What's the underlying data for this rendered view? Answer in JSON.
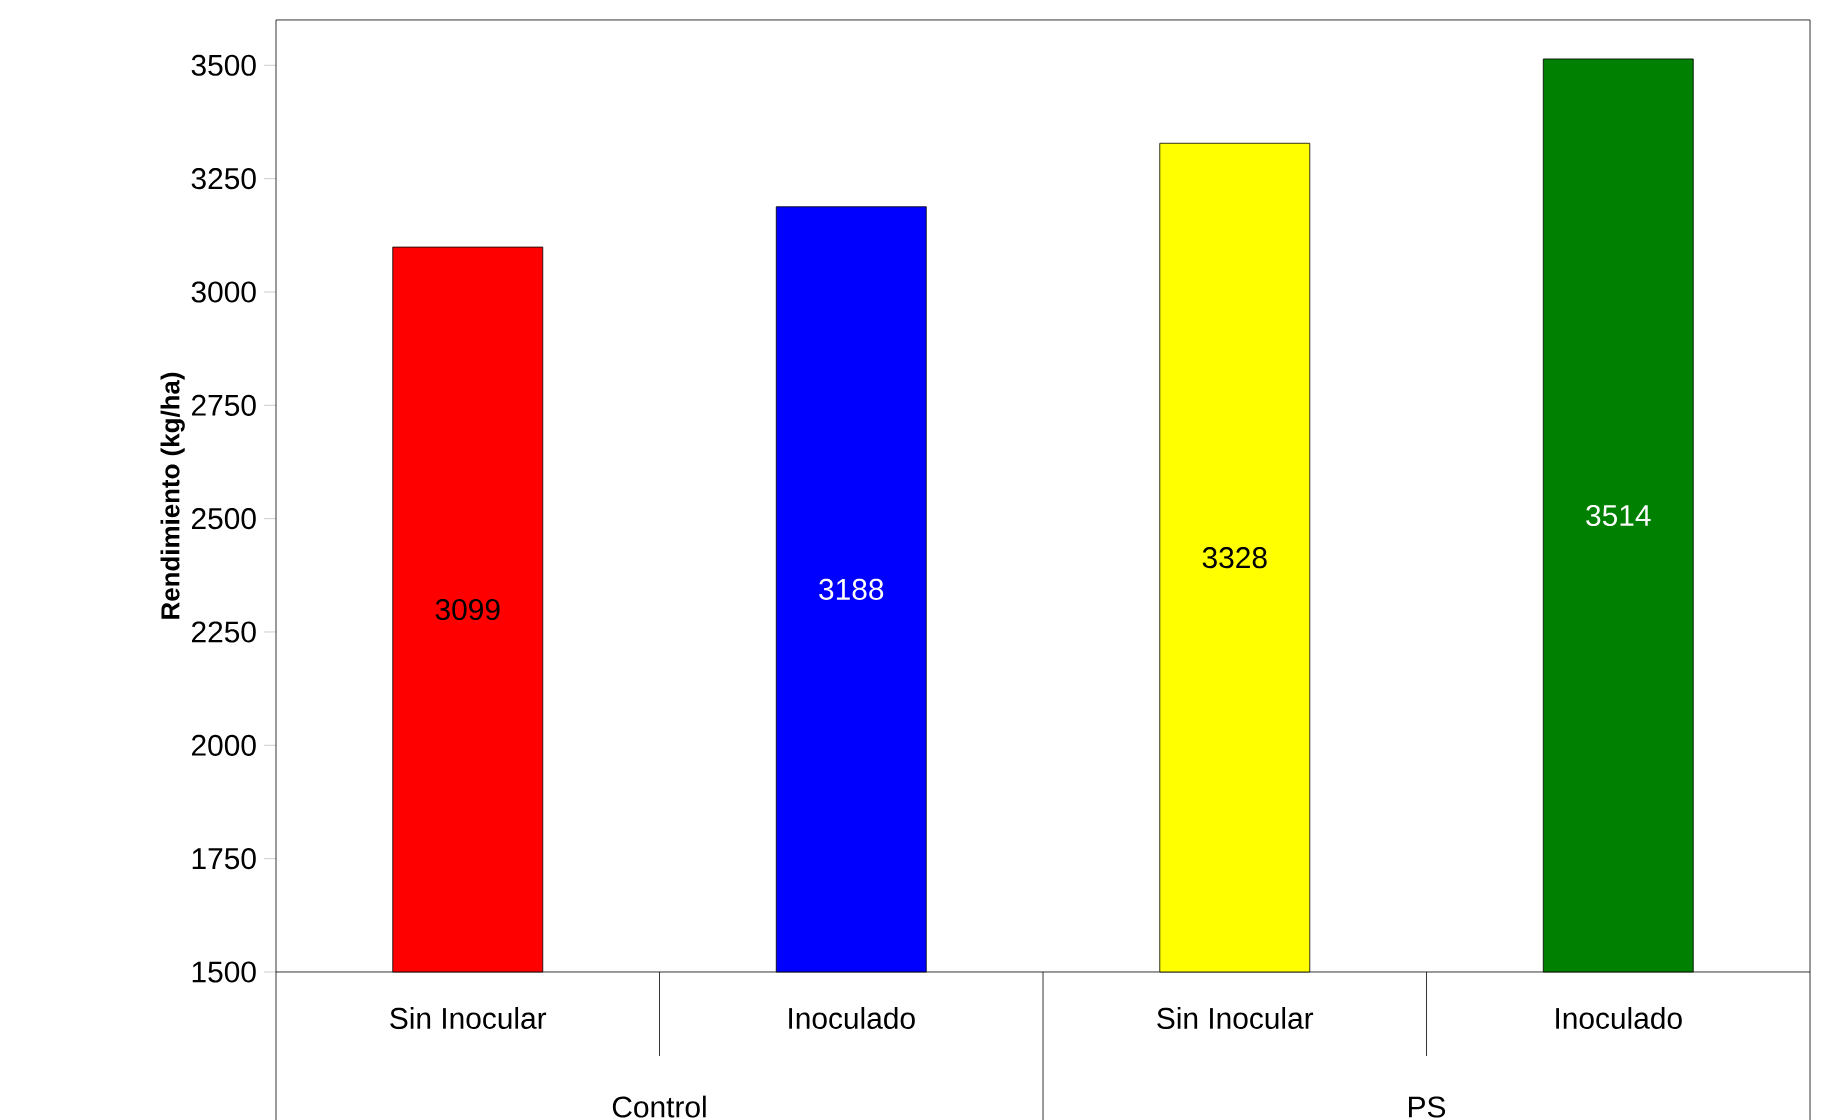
{
  "chart_data": {
    "type": "bar",
    "ylabel": "Rendimiento (kg/ha)",
    "categories": [
      "Sin Inocular",
      "Inoculado",
      "Sin Inocular",
      "Inoculado"
    ],
    "values": [
      3099,
      3188,
      3328,
      3514
    ],
    "colors": [
      "#ff0000",
      "#0000ff",
      "#ffff00",
      "#008000"
    ],
    "ylim": [
      1500,
      3600
    ],
    "yticks": [
      1500,
      1750,
      2000,
      2250,
      2500,
      2750,
      3000,
      3250,
      3500
    ],
    "data_labels": true,
    "grid": false,
    "annotations": [
      "Control",
      "PS"
    ]
  }
}
